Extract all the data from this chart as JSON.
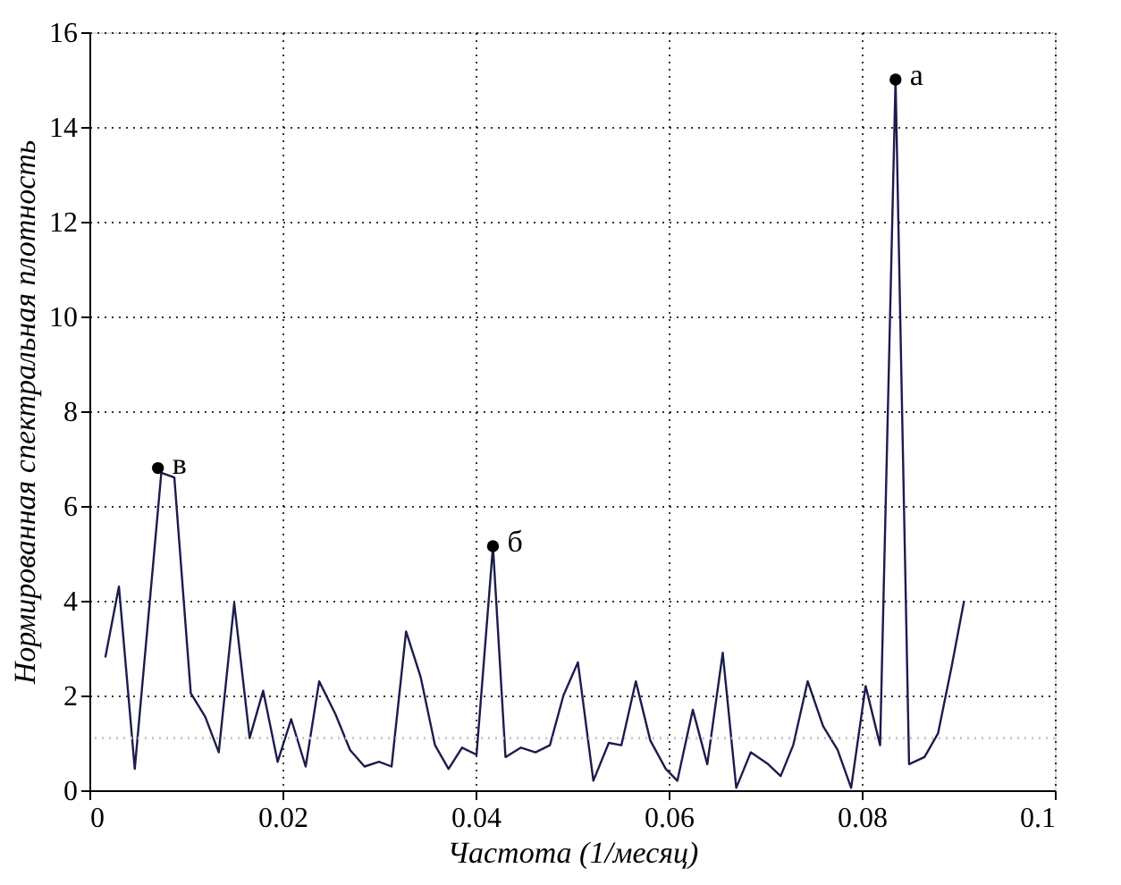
{
  "chart_data": {
    "type": "line",
    "xlabel": "Частота (1/месяц)",
    "ylabel": "Нормированная спектральная плотность",
    "x": [
      0.00165,
      0.00306,
      0.0047,
      0.00745,
      0.0088,
      0.0105,
      0.012,
      0.0134,
      0.015,
      0.0166,
      0.018,
      0.0195,
      0.0209,
      0.0224,
      0.0238,
      0.0255,
      0.027,
      0.0285,
      0.03,
      0.0313,
      0.0328,
      0.0343,
      0.0358,
      0.0372,
      0.0386,
      0.0401,
      0.0418,
      0.0431,
      0.0447,
      0.0462,
      0.0477,
      0.0491,
      0.0506,
      0.0522,
      0.0538,
      0.0551,
      0.0566,
      0.0581,
      0.0597,
      0.0609,
      0.0625,
      0.064,
      0.0656,
      0.067,
      0.0685,
      0.0703,
      0.0716,
      0.0729,
      0.0744,
      0.076,
      0.0775,
      0.0789,
      0.0804,
      0.0819,
      0.0835,
      0.0849,
      0.0865,
      0.0879,
      0.0893,
      0.0906
    ],
    "series": [
      {
        "color": "#1c1c4e",
        "values": [
          2.8,
          4.3,
          0.45,
          6.7,
          6.6,
          2.05,
          1.55,
          0.8,
          3.95,
          1.1,
          2.1,
          0.6,
          1.5,
          0.5,
          2.3,
          1.6,
          0.85,
          0.5,
          0.6,
          0.5,
          3.35,
          2.4,
          0.95,
          0.45,
          0.9,
          0.75,
          5.15,
          0.7,
          0.9,
          0.8,
          0.95,
          2.0,
          2.7,
          0.2,
          1.0,
          0.95,
          2.3,
          1.05,
          0.45,
          0.2,
          1.7,
          0.55,
          2.9,
          0.05,
          0.8,
          0.55,
          0.3,
          0.95,
          2.3,
          1.35,
          0.85,
          0.05,
          2.2,
          0.95,
          15.0,
          0.55,
          0.7,
          1.2,
          2.6,
          4.0
        ]
      }
    ],
    "xlim": [
      0,
      0.1
    ],
    "xticks": [
      0,
      0.02,
      0.04,
      0.06,
      0.08,
      0.1
    ],
    "ylim": [
      0,
      16
    ],
    "yticks": [
      0,
      2,
      4,
      6,
      8,
      10,
      12,
      14,
      16
    ],
    "grid": true,
    "marker": "none",
    "line_style": "solid",
    "ref_lines": [
      {
        "axis": "y",
        "value": 1.1,
        "label": null,
        "color": "#c8c8c8",
        "line_style": "dotted"
      }
    ],
    "annotations": [
      {
        "text": "а",
        "x": 0.0835,
        "y": 15.0
      },
      {
        "text": "б",
        "x": 0.0418,
        "y": 5.15
      },
      {
        "text": "в",
        "x": 0.0071,
        "y": 6.8
      }
    ]
  }
}
